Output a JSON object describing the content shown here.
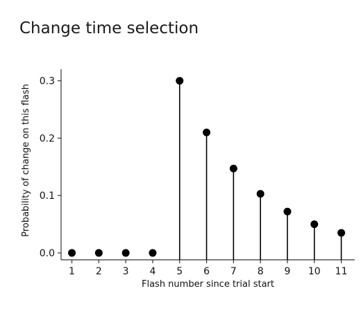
{
  "title": "Change time selection",
  "chart_data": {
    "type": "stem",
    "title": "Change time selection",
    "xlabel": "Flash number since trial start",
    "ylabel": "Probability of change on this flash",
    "x": [
      1,
      2,
      3,
      4,
      5,
      6,
      7,
      8,
      9,
      10,
      11
    ],
    "y": [
      0.0,
      0.0,
      0.0,
      0.0,
      0.3,
      0.21,
      0.147,
      0.103,
      0.072,
      0.05,
      0.035
    ],
    "xticks": [
      "1",
      "2",
      "3",
      "4",
      "5",
      "6",
      "7",
      "8",
      "9",
      "10",
      "11"
    ],
    "yticks": [
      "0.0",
      "0.1",
      "0.2",
      "0.3"
    ],
    "ytick_values": [
      0.0,
      0.1,
      0.2,
      0.3
    ],
    "xlim": [
      0.6,
      11.5
    ],
    "ylim": [
      -0.012,
      0.32
    ],
    "grid": false,
    "legend": "none",
    "marker_color": "#000000",
    "axis_color": "#333333"
  }
}
